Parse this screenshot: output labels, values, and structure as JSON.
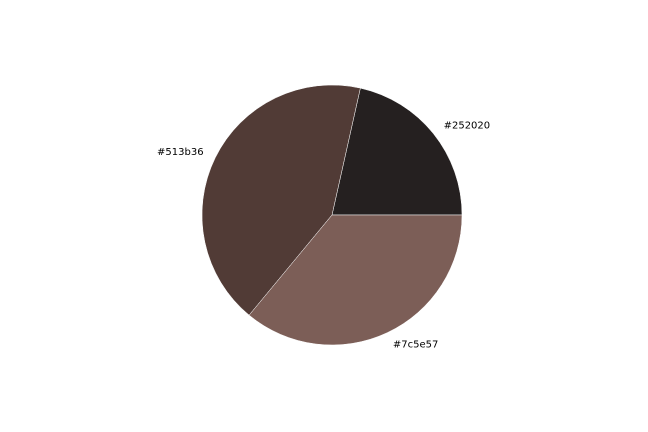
{
  "chart_data": {
    "type": "pie",
    "slices": [
      {
        "label": "#252020",
        "value": 21.5,
        "color": "#252020"
      },
      {
        "label": "#513b36",
        "value": 42.5,
        "color": "#513b36"
      },
      {
        "label": "#7c5e57",
        "value": 36.0,
        "color": "#7c5e57"
      }
    ],
    "title": "",
    "legend": "none"
  }
}
